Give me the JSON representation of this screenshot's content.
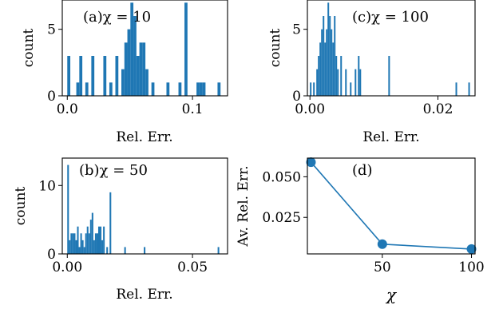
{
  "chart_data": [
    {
      "id": "a",
      "type": "bar",
      "panel_label": "(a)χ = 10",
      "xlabel": "Rel. Err.",
      "ylabel": "count",
      "xlim": [
        -0.004,
        0.128
      ],
      "ylim": [
        0,
        7.2
      ],
      "xticks": [
        0,
        0.1
      ],
      "xtick_labels": [
        "0.0",
        "0.1"
      ],
      "yticks": [
        0,
        5
      ],
      "ytick_labels": [
        "0",
        "5"
      ],
      "bin_width": 0.0024,
      "bins": [
        {
          "x": 0.0012,
          "count": 3
        },
        {
          "x": 0.0084,
          "count": 1
        },
        {
          "x": 0.0108,
          "count": 3
        },
        {
          "x": 0.0156,
          "count": 1
        },
        {
          "x": 0.0204,
          "count": 3
        },
        {
          "x": 0.03,
          "count": 3
        },
        {
          "x": 0.0348,
          "count": 1
        },
        {
          "x": 0.0396,
          "count": 3
        },
        {
          "x": 0.0444,
          "count": 2
        },
        {
          "x": 0.0468,
          "count": 4
        },
        {
          "x": 0.0492,
          "count": 5
        },
        {
          "x": 0.0516,
          "count": 7
        },
        {
          "x": 0.054,
          "count": 6
        },
        {
          "x": 0.0564,
          "count": 3
        },
        {
          "x": 0.0588,
          "count": 4
        },
        {
          "x": 0.0612,
          "count": 4
        },
        {
          "x": 0.0636,
          "count": 2
        },
        {
          "x": 0.0684,
          "count": 1
        },
        {
          "x": 0.0804,
          "count": 1
        },
        {
          "x": 0.09,
          "count": 1
        },
        {
          "x": 0.0948,
          "count": 7
        },
        {
          "x": 0.1044,
          "count": 1
        },
        {
          "x": 0.1068,
          "count": 1
        },
        {
          "x": 0.1092,
          "count": 1
        },
        {
          "x": 0.1212,
          "count": 1
        }
      ]
    },
    {
      "id": "c",
      "type": "bar",
      "panel_label": "(c)χ = 100",
      "xlabel": "Rel. Err.",
      "ylabel": "count",
      "xlim": [
        -0.0004,
        0.0258
      ],
      "ylim": [
        0,
        7.2
      ],
      "xticks": [
        0,
        0.02
      ],
      "xtick_labels": [
        "0.00",
        "0.02"
      ],
      "yticks": [
        0,
        5
      ],
      "ytick_labels": [
        "0",
        "5"
      ],
      "bin_width": 0.00025,
      "bins": [
        {
          "x": 0.00012,
          "count": 1
        },
        {
          "x": 0.00062,
          "count": 1
        },
        {
          "x": 0.00112,
          "count": 2
        },
        {
          "x": 0.00137,
          "count": 3
        },
        {
          "x": 0.00162,
          "count": 4
        },
        {
          "x": 0.00187,
          "count": 5
        },
        {
          "x": 0.00212,
          "count": 6
        },
        {
          "x": 0.00237,
          "count": 4
        },
        {
          "x": 0.00262,
          "count": 5
        },
        {
          "x": 0.00287,
          "count": 7
        },
        {
          "x": 0.00312,
          "count": 6
        },
        {
          "x": 0.00337,
          "count": 5
        },
        {
          "x": 0.00362,
          "count": 4
        },
        {
          "x": 0.00387,
          "count": 6
        },
        {
          "x": 0.00412,
          "count": 3
        },
        {
          "x": 0.00437,
          "count": 2
        },
        {
          "x": 0.00487,
          "count": 3
        },
        {
          "x": 0.00562,
          "count": 2
        },
        {
          "x": 0.00637,
          "count": 1
        },
        {
          "x": 0.00712,
          "count": 2
        },
        {
          "x": 0.00762,
          "count": 3
        },
        {
          "x": 0.00787,
          "count": 2
        },
        {
          "x": 0.01237,
          "count": 3
        },
        {
          "x": 0.02287,
          "count": 1
        },
        {
          "x": 0.02487,
          "count": 1
        }
      ]
    },
    {
      "id": "b",
      "type": "bar",
      "panel_label": "(b)χ = 50",
      "xlabel": "Rel. Err.",
      "ylabel": "count",
      "xlim": [
        -0.002,
        0.064
      ],
      "ylim": [
        0,
        14
      ],
      "xticks": [
        0,
        0.05
      ],
      "xtick_labels": [
        "0.00",
        "0.05"
      ],
      "yticks": [
        0,
        10
      ],
      "ytick_labels": [
        "0",
        "10"
      ],
      "bin_width": 0.00065,
      "bins": [
        {
          "x": 0.00032,
          "count": 13
        },
        {
          "x": 0.00097,
          "count": 2
        },
        {
          "x": 0.00162,
          "count": 3
        },
        {
          "x": 0.00227,
          "count": 3
        },
        {
          "x": 0.00292,
          "count": 3
        },
        {
          "x": 0.00357,
          "count": 2
        },
        {
          "x": 0.00422,
          "count": 4
        },
        {
          "x": 0.00487,
          "count": 1
        },
        {
          "x": 0.00552,
          "count": 3
        },
        {
          "x": 0.00617,
          "count": 2
        },
        {
          "x": 0.00682,
          "count": 1
        },
        {
          "x": 0.00747,
          "count": 3
        },
        {
          "x": 0.00812,
          "count": 4
        },
        {
          "x": 0.00877,
          "count": 3
        },
        {
          "x": 0.00942,
          "count": 5
        },
        {
          "x": 0.01007,
          "count": 6
        },
        {
          "x": 0.01072,
          "count": 2
        },
        {
          "x": 0.01137,
          "count": 3
        },
        {
          "x": 0.01202,
          "count": 3
        },
        {
          "x": 0.01267,
          "count": 4
        },
        {
          "x": 0.01332,
          "count": 4
        },
        {
          "x": 0.01397,
          "count": 2
        },
        {
          "x": 0.01462,
          "count": 4
        },
        {
          "x": 0.01592,
          "count": 1
        },
        {
          "x": 0.01722,
          "count": 9
        },
        {
          "x": 0.02307,
          "count": 1
        },
        {
          "x": 0.03087,
          "count": 1
        },
        {
          "x": 0.06037,
          "count": 1
        }
      ]
    },
    {
      "id": "d",
      "type": "line",
      "panel_label": "(d)",
      "xlabel": "χ",
      "ylabel": "Av. Rel. Err.",
      "xlim": [
        8,
        102
      ],
      "ylim": [
        0.0025,
        0.0615
      ],
      "xticks": [
        50,
        100
      ],
      "xtick_labels": [
        "50",
        "100"
      ],
      "yticks": [
        0.025,
        0.05
      ],
      "ytick_labels": [
        "0.025",
        "0.050"
      ],
      "x": [
        10,
        50,
        100
      ],
      "y": [
        0.059,
        0.0085,
        0.0055
      ]
    }
  ]
}
